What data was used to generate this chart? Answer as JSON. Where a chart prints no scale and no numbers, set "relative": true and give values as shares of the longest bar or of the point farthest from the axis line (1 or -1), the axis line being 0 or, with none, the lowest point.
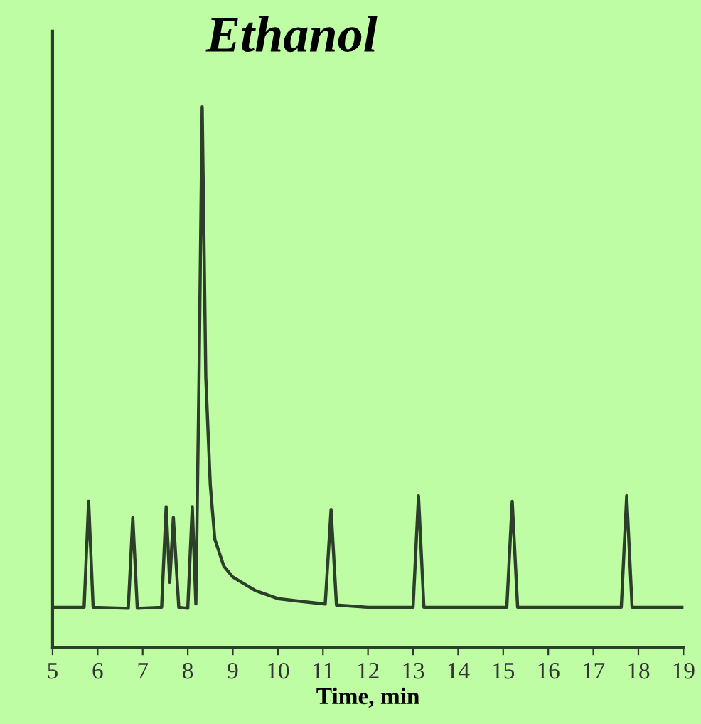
{
  "chart_data": {
    "type": "line",
    "relative": true,
    "xlabel": "Time, min",
    "xlim": [
      5,
      19
    ],
    "xticks": [
      5,
      6,
      7,
      8,
      9,
      10,
      11,
      12,
      13,
      14,
      15,
      16,
      17,
      18,
      19
    ],
    "annotations": [
      {
        "text": "Ethanol",
        "x": 8.32,
        "y": 1
      }
    ],
    "grid": false,
    "legend": false,
    "marker": "none",
    "line_style": "solid",
    "series": [
      {
        "color": "#2d3f2a",
        "x": [
          5.0,
          5.7,
          5.8,
          5.9,
          6.68,
          6.78,
          6.88,
          7.42,
          7.52,
          7.6,
          7.68,
          7.8,
          8.0,
          8.1,
          8.18,
          8.25,
          8.32,
          8.4,
          8.5,
          8.6,
          8.8,
          9.0,
          9.5,
          10,
          10.5,
          11.05,
          11.18,
          11.3,
          12,
          13.0,
          13.12,
          13.24,
          15.08,
          15.2,
          15.32,
          17.62,
          17.74,
          17.86,
          19
        ],
        "values": [
          0.074,
          0.074,
          0.27,
          0.074,
          0.072,
          0.24,
          0.072,
          0.074,
          0.26,
          0.12,
          0.24,
          0.074,
          0.072,
          0.26,
          0.08,
          0.5,
          1,
          0.5,
          0.3,
          0.2,
          0.15,
          0.13,
          0.105,
          0.09,
          0.085,
          0.08,
          0.255,
          0.078,
          0.074,
          0.074,
          0.28,
          0.074,
          0.074,
          0.27,
          0.074,
          0.074,
          0.28,
          0.074,
          0.074
        ]
      }
    ]
  }
}
